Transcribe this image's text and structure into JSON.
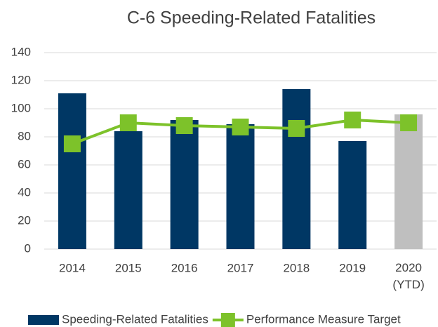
{
  "chart_data": {
    "type": "bar",
    "title": "C-6 Speeding-Related Fatalities",
    "categories": [
      "2014",
      "2015",
      "2016",
      "2017",
      "2018",
      "2019",
      "2020 (YTD)"
    ],
    "series": [
      {
        "name": "Speeding-Related Fatalities",
        "type": "bar",
        "color": "#003764",
        "colors": [
          "#003764",
          "#003764",
          "#003764",
          "#003764",
          "#003764",
          "#003764",
          "#bfbfbf"
        ],
        "values": [
          111,
          84,
          92,
          89,
          114,
          77,
          96
        ]
      },
      {
        "name": "Performance Measure Target",
        "type": "line",
        "color": "#7dc22a",
        "values": [
          75,
          90,
          88,
          87,
          86,
          92,
          90
        ]
      }
    ],
    "ylim": [
      0,
      140
    ],
    "yticks": [
      0,
      20,
      40,
      60,
      80,
      100,
      120,
      140
    ],
    "grid": true,
    "legend": "bottom"
  }
}
